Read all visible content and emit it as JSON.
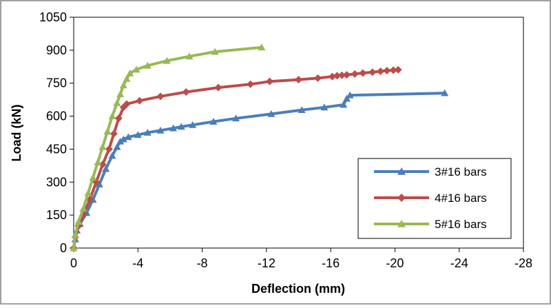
{
  "chart_data": {
    "type": "line",
    "title": "",
    "xlabel": "Deflection (mm)",
    "ylabel": "Load (kN)",
    "xlim": [
      0,
      -28
    ],
    "ylim": [
      0,
      1050
    ],
    "xticks": [
      0,
      -4,
      -8,
      -12,
      -16,
      -20,
      -24,
      -28
    ],
    "xtick_labels": [
      "0",
      "-4",
      "-8",
      "-12",
      "-16",
      "-20",
      "-24",
      "-28"
    ],
    "yticks": [
      0,
      150,
      300,
      450,
      600,
      750,
      900,
      1050
    ],
    "ytick_labels": [
      "0",
      "150",
      "300",
      "450",
      "600",
      "750",
      "900",
      "1050"
    ],
    "grid": false,
    "legend_position": "bottom-right",
    "series": [
      {
        "name": "3#16 bars",
        "color": "#4a7ebb",
        "marker": "triangle",
        "points": [
          [
            0,
            0
          ],
          [
            -0.1,
            40
          ],
          [
            -0.2,
            80
          ],
          [
            -0.4,
            110
          ],
          [
            -0.8,
            160
          ],
          [
            -1.2,
            220
          ],
          [
            -1.6,
            290
          ],
          [
            -2.0,
            360
          ],
          [
            -2.4,
            420
          ],
          [
            -2.7,
            460
          ],
          [
            -2.9,
            485
          ],
          [
            -3.1,
            495
          ],
          [
            -3.4,
            505
          ],
          [
            -4.0,
            515
          ],
          [
            -4.6,
            525
          ],
          [
            -5.4,
            535
          ],
          [
            -6.2,
            545
          ],
          [
            -6.7,
            552
          ],
          [
            -7.4,
            560
          ],
          [
            -8.7,
            575
          ],
          [
            -10.1,
            590
          ],
          [
            -12.3,
            610
          ],
          [
            -14.2,
            628
          ],
          [
            -15.6,
            640
          ],
          [
            -16.8,
            652
          ],
          [
            -17.0,
            680
          ],
          [
            -17.2,
            695
          ],
          [
            -23.1,
            705
          ]
        ]
      },
      {
        "name": "4#16 bars",
        "color": "#be4b48",
        "marker": "diamond",
        "points": [
          [
            0,
            0
          ],
          [
            -0.1,
            50
          ],
          [
            -0.3,
            100
          ],
          [
            -0.6,
            150
          ],
          [
            -1.0,
            220
          ],
          [
            -1.4,
            300
          ],
          [
            -1.8,
            380
          ],
          [
            -2.2,
            450
          ],
          [
            -2.5,
            520
          ],
          [
            -2.8,
            590
          ],
          [
            -3.1,
            640
          ],
          [
            -3.3,
            655
          ],
          [
            -4.1,
            670
          ],
          [
            -5.4,
            690
          ],
          [
            -7.0,
            710
          ],
          [
            -9.0,
            730
          ],
          [
            -11.0,
            745
          ],
          [
            -12.2,
            758
          ],
          [
            -14.0,
            766
          ],
          [
            -15.2,
            773
          ],
          [
            -16.1,
            780
          ],
          [
            -16.4,
            784
          ],
          [
            -16.7,
            786
          ],
          [
            -17.0,
            788
          ],
          [
            -17.5,
            792
          ],
          [
            -18.0,
            796
          ],
          [
            -18.6,
            800
          ],
          [
            -19.1,
            804
          ],
          [
            -19.5,
            807
          ],
          [
            -19.9,
            809
          ],
          [
            -20.2,
            811
          ]
        ]
      },
      {
        "name": "5#16 bars",
        "color": "#98b954",
        "marker": "triangle",
        "points": [
          [
            0,
            0
          ],
          [
            -0.1,
            60
          ],
          [
            -0.3,
            120
          ],
          [
            -0.6,
            180
          ],
          [
            -0.9,
            250
          ],
          [
            -1.2,
            320
          ],
          [
            -1.5,
            390
          ],
          [
            -1.8,
            460
          ],
          [
            -2.1,
            530
          ],
          [
            -2.4,
            600
          ],
          [
            -2.7,
            660
          ],
          [
            -2.9,
            700
          ],
          [
            -3.1,
            740
          ],
          [
            -3.3,
            770
          ],
          [
            -3.5,
            795
          ],
          [
            -3.9,
            812
          ],
          [
            -4.6,
            830
          ],
          [
            -5.8,
            852
          ],
          [
            -7.2,
            872
          ],
          [
            -8.8,
            893
          ],
          [
            -11.7,
            913
          ]
        ]
      }
    ]
  }
}
